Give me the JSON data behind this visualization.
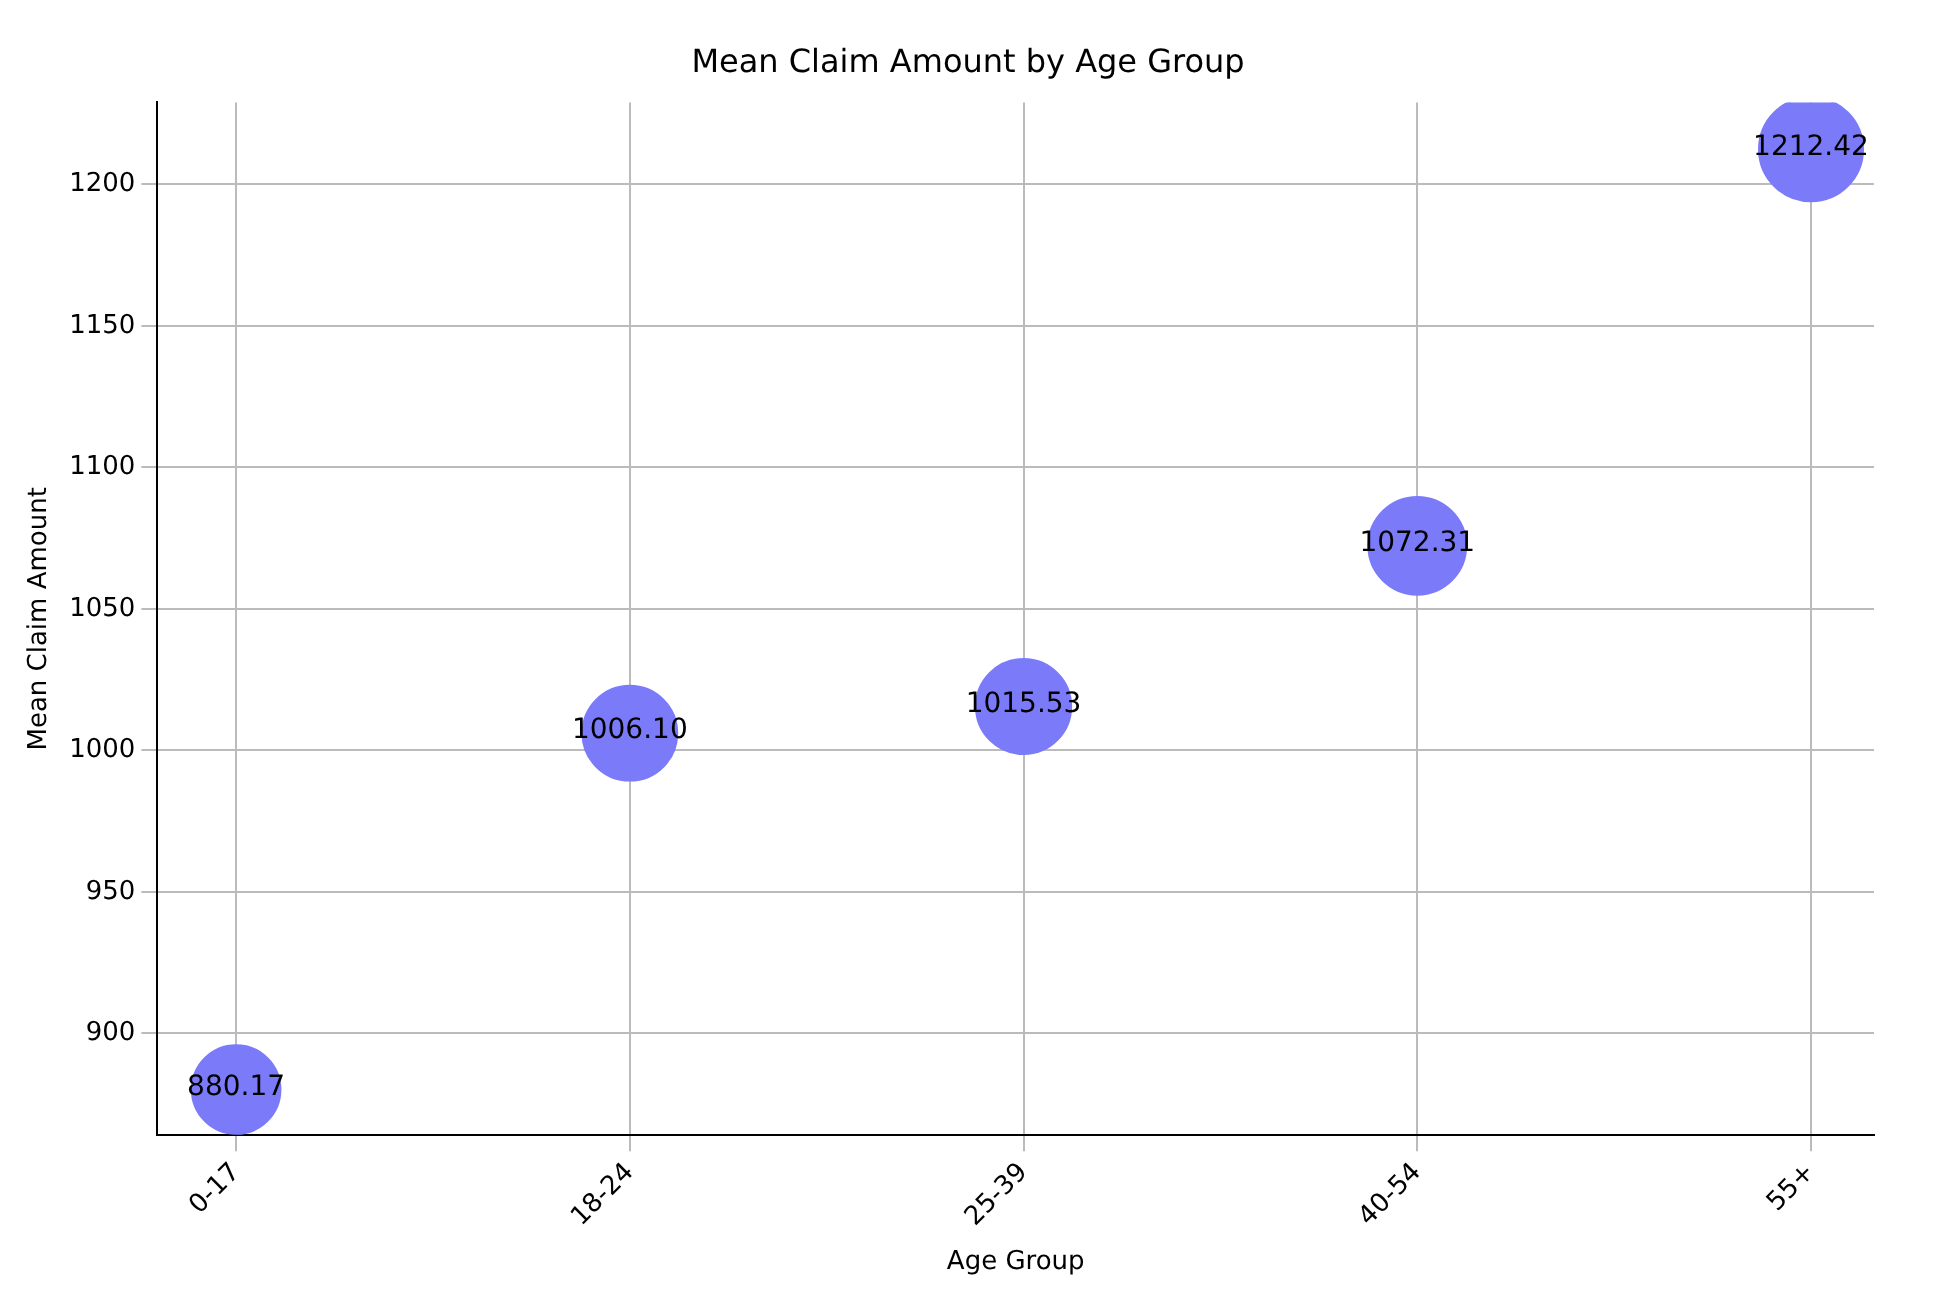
{
  "chart_data": {
    "type": "bubble",
    "title": "Mean Claim Amount by Age Group",
    "xlabel": "Age Group",
    "ylabel": "Mean Claim Amount",
    "categories": [
      "0-17",
      "18-24",
      "25-39",
      "40-54",
      "55+"
    ],
    "values": [
      880.17,
      1006.1,
      1015.53,
      1072.31,
      1212.42
    ],
    "value_labels": [
      "880.17",
      "1006.10",
      "1015.53",
      "1072.31",
      "1212.42"
    ],
    "sizes": [
      0.726,
      0.83,
      0.838,
      0.884,
      1
    ],
    "color": "#7b7bfa",
    "ylim": [
      864,
      1229
    ],
    "yticks": [
      900,
      950,
      1000,
      1050,
      1100,
      1150,
      1200
    ],
    "grid": true,
    "legend": false
  }
}
